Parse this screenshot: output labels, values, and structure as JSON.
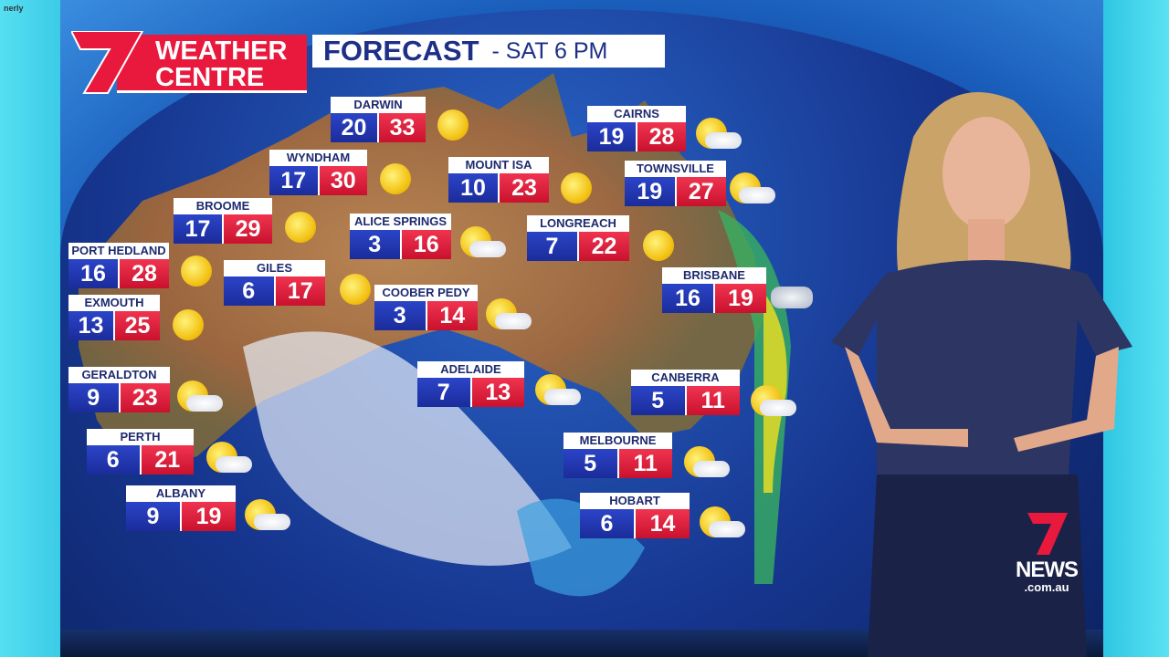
{
  "corner_text": "nerly",
  "header": {
    "brand_line1": "WEATHER",
    "brand_line2": "CENTRE",
    "title": "FORECAST",
    "subtitle": "-  SAT  6 PM"
  },
  "footer_logo": {
    "name": "NEWS",
    "domain": ".com.au"
  },
  "colors": {
    "brand_red": "#e8193c",
    "min_blue": "#2238b4",
    "max_red": "#e0213f",
    "title_navy": "#1d2f86",
    "wall_cyan": "#3fd6ec"
  },
  "cities": [
    {
      "name": "DARWIN",
      "min": "20",
      "max": "33",
      "icon": "sun-icon"
    },
    {
      "name": "WYNDHAM",
      "min": "17",
      "max": "30",
      "icon": "sun-icon"
    },
    {
      "name": "BROOME",
      "min": "17",
      "max": "29",
      "icon": "sun-icon"
    },
    {
      "name": "PORT HEDLAND",
      "min": "16",
      "max": "28",
      "icon": "sun-icon"
    },
    {
      "name": "EXMOUTH",
      "min": "13",
      "max": "25",
      "icon": "sun-icon"
    },
    {
      "name": "GERALDTON",
      "min": "9",
      "max": "23",
      "icon": "partly-cloudy-icon"
    },
    {
      "name": "PERTH",
      "min": "6",
      "max": "21",
      "icon": "partly-cloudy-icon"
    },
    {
      "name": "ALBANY",
      "min": "9",
      "max": "19",
      "icon": "partly-cloudy-icon"
    },
    {
      "name": "GILES",
      "min": "6",
      "max": "17",
      "icon": "sun-icon"
    },
    {
      "name": "ALICE SPRINGS",
      "min": "3",
      "max": "16",
      "icon": "partly-cloudy-icon"
    },
    {
      "name": "COOBER PEDY",
      "min": "3",
      "max": "14",
      "icon": "partly-cloudy-icon"
    },
    {
      "name": "MOUNT ISA",
      "min": "10",
      "max": "23",
      "icon": "sun-icon"
    },
    {
      "name": "LONGREACH",
      "min": "7",
      "max": "22",
      "icon": "sun-icon"
    },
    {
      "name": "ADELAIDE",
      "min": "7",
      "max": "13",
      "icon": "partly-cloudy-icon"
    },
    {
      "name": "CAIRNS",
      "min": "19",
      "max": "28",
      "icon": "partly-cloudy-icon"
    },
    {
      "name": "TOWNSVILLE",
      "min": "19",
      "max": "27",
      "icon": "partly-cloudy-icon"
    },
    {
      "name": "BRISBANE",
      "min": "16",
      "max": "19",
      "icon": "cloud-icon"
    },
    {
      "name": "CANBERRA",
      "min": "5",
      "max": "11",
      "icon": "partly-cloudy-icon"
    },
    {
      "name": "MELBOURNE",
      "min": "5",
      "max": "11",
      "icon": "partly-cloudy-icon"
    },
    {
      "name": "HOBART",
      "min": "6",
      "max": "14",
      "icon": "partly-cloudy-icon"
    }
  ]
}
